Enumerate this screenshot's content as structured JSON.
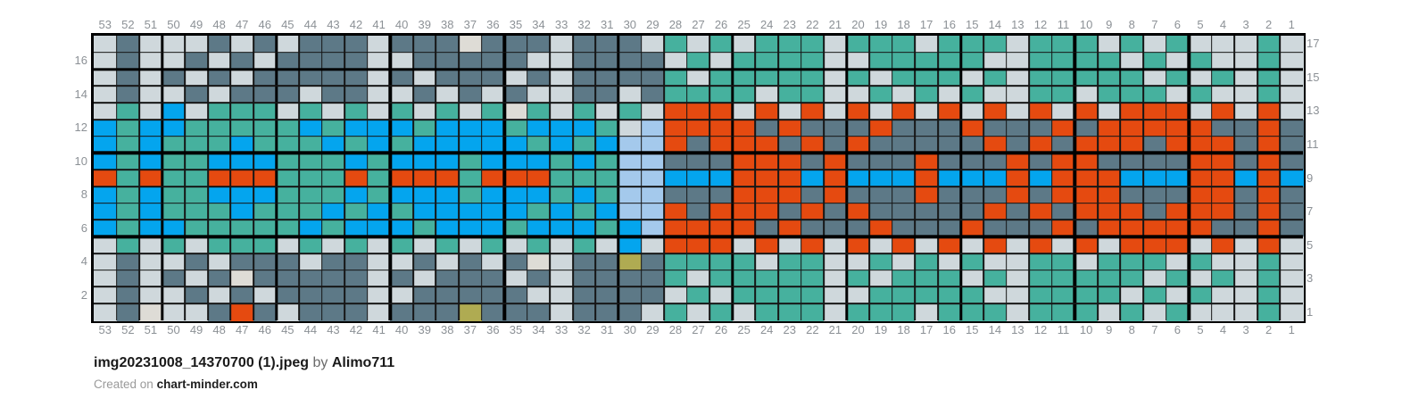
{
  "palette": {
    "T": "#46b19e",
    "D": "#5d7987",
    "L": "#cfd8dc",
    "B": "#04a5ee",
    "O": "#e54a10",
    "P": "#a4c9ec",
    "Y": "#afab52",
    "W": "#dedcd6"
  },
  "grid": {
    "columns": 53,
    "rows": 17,
    "bold_every": 5,
    "col_labels": [
      "53",
      "52",
      "51",
      "50",
      "49",
      "48",
      "47",
      "46",
      "45",
      "44",
      "43",
      "42",
      "41",
      "40",
      "39",
      "38",
      "37",
      "36",
      "35",
      "34",
      "33",
      "32",
      "31",
      "30",
      "29",
      "28",
      "27",
      "26",
      "25",
      "24",
      "23",
      "22",
      "21",
      "20",
      "19",
      "18",
      "17",
      "16",
      "15",
      "14",
      "13",
      "12",
      "11",
      "10",
      "9",
      "8",
      "7",
      "6",
      "5",
      "4",
      "3",
      "2",
      "1"
    ],
    "left_labels": [
      "16",
      "14",
      "12",
      "10",
      "8",
      "6",
      "4",
      "2"
    ],
    "right_labels": [
      "17",
      "15",
      "13",
      "11",
      "9",
      "7",
      "5",
      "3",
      "1"
    ],
    "cells": [
      "LDLLLDLDLDDDLDDDWDDDLDDDLTLTLTTTLTTTLTTTLTTTLTLTLLLTL",
      "LDLLDLDLDDDDLLDDDDDLLDDDDLTLTTTTLLTTTTTLLTTTTLTLTLLTL",
      "LDLDLDLDDDDDLDLDDDLDLDDDDTLTTTTTLTLTTTLTLTTTTTLTLTLTL",
      "LDLLDLDDDLDDLLDLDLDLLDDLDTTTTLTTLLTLTLTLLTTLTTTLTLLTL",
      "LTLBLTTTLTLTLTLTLTWTLTLTLOOOLOLOLOLOLOLOLOLOLOOOLOLOL",
      "BTBBTTTTTBTBBBTBBBTBBBTLPOOOODODDDODDDODDDODOOOOODDOD",
      "BTBTTTBTTTBTBTBBBBBTBTBPPODOOODODODDDDDODODOOODOOODOD",
      "BTBTTBBBTTTBTBBBTBBBTBTPPDDDOOODODDDODDDODOODDDDOODOD",
      "OTOTTOOOTTTOTOOOTOOOTTTPPBBBOOOBOBBBOBBBOBOOOBBBOOBOB",
      "BTBTTBBBTTTBTBBBTBBBTBTPPDDDOOODODDDODDDODOOODDDOODOD",
      "BTBTTTBTTTBTBTBBBBBTBTBPPODOOODODODDDDDODODOOODOOODOD",
      "BTBBTTTTTBTBBBTBBBTBBBTBPOOOODODDDODDDODDDODOOOOODDOD",
      "LTLTLTTTLTLTLTLTLTLTLTLBLOOOLOLOLOLOLOLOLOLOLOOOLOLOL",
      "LDLLDLDDDLDDLLDLDLDWLDDYDTTTTLTTLLTLTLTLLTTLTTTLTLLTL",
      "LDLDLDWDDDDDLDLDDDLDLDDDDTLTTTTTLTLTTTLTLTTTTTLTLTLTL",
      "LDLLDLDLDDDDLLDDDDDLLDDDDLTLTTTTLLTTTTTLLTTTTLTLTLLTL",
      "LDWLLDODLDDDLDDDYDDDLDDDLTLTLTTTLTTTLTTTLTTTLTLTLLLTL"
    ]
  },
  "footer": {
    "title": "img20231008_14370700 (1).jpeg",
    "by_label": "by",
    "author": "Alimo711",
    "created_prefix": "Created on",
    "site": "chart-minder.com"
  }
}
